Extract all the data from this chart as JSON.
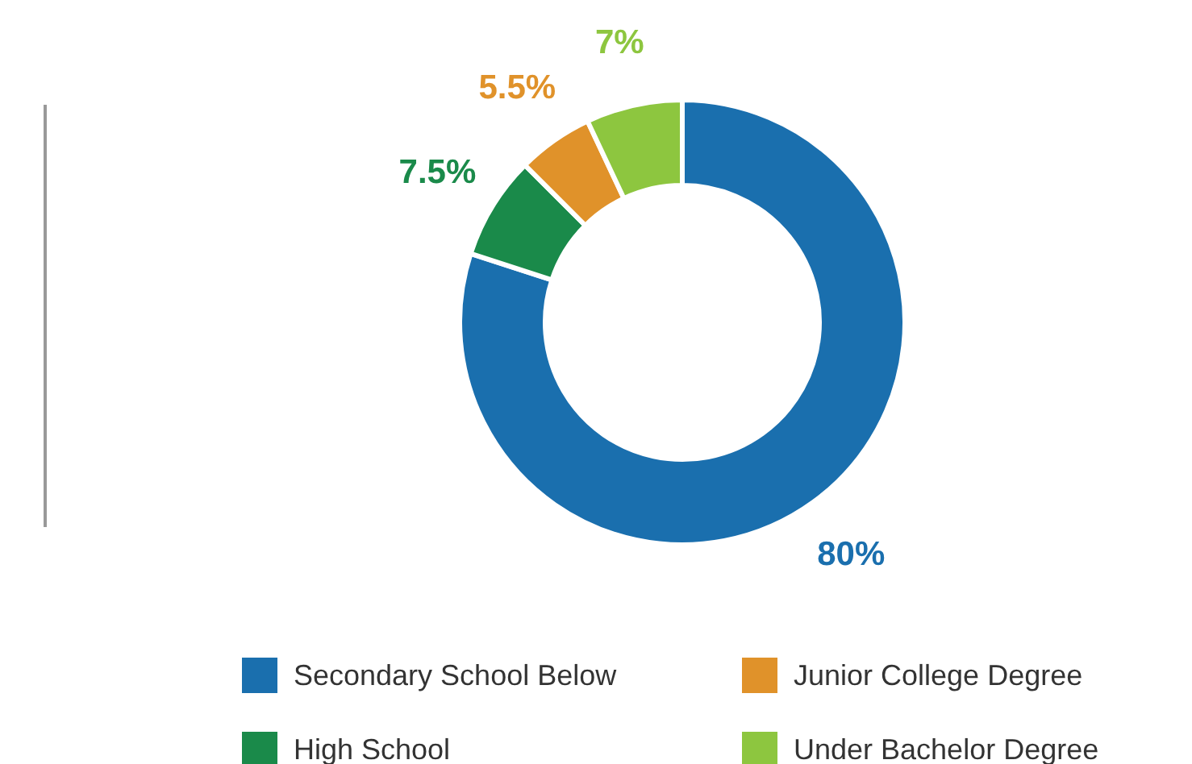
{
  "chart_data": {
    "type": "donut",
    "categories": [
      "Secondary School Below",
      "High School",
      "Junior College Degree",
      "Under Bachelor Degree"
    ],
    "values": [
      80,
      7.5,
      5.5,
      7
    ],
    "colors": [
      "#1a6fae",
      "#1a8a4a",
      "#e0922a",
      "#8dc63f"
    ],
    "value_labels": [
      "80%",
      "7.5%",
      "5.5%",
      "7%"
    ],
    "legend": "bottom"
  }
}
